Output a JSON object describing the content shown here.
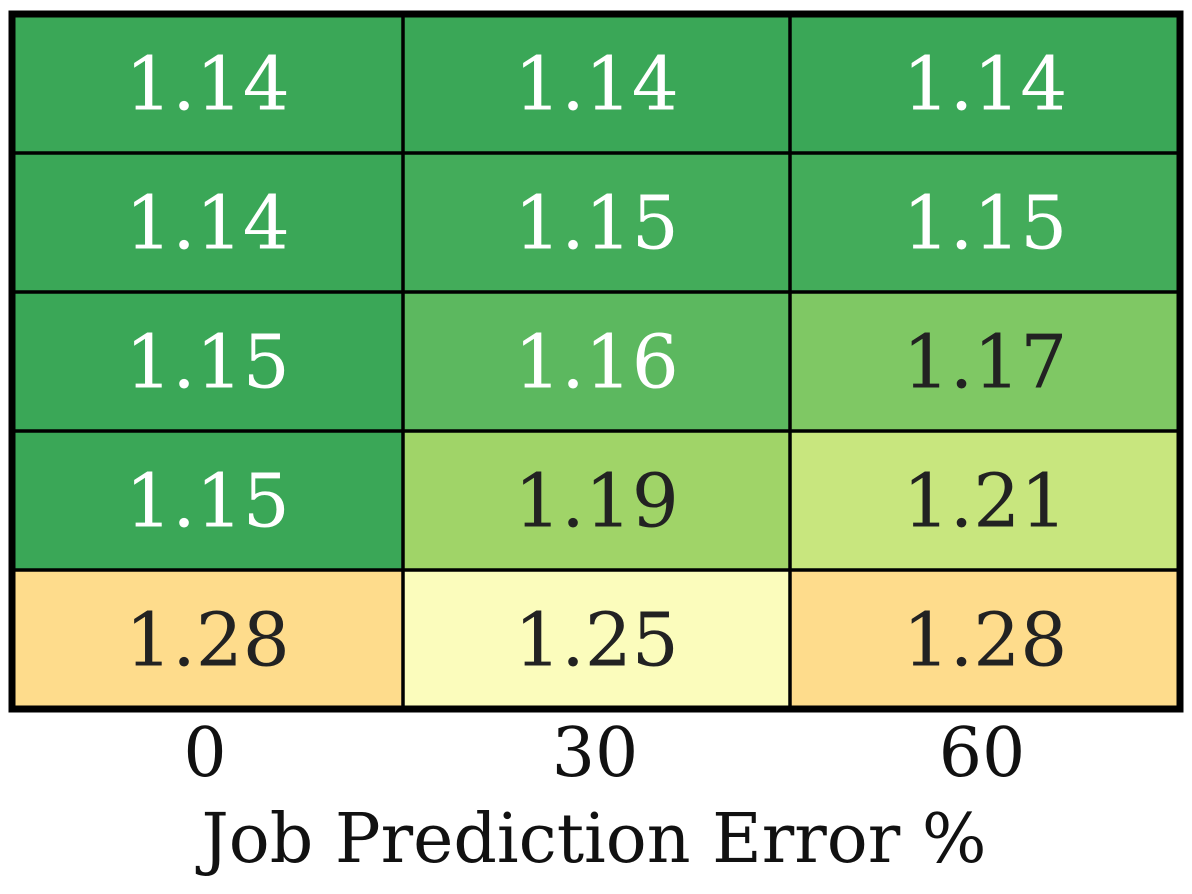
{
  "chart_data": {
    "type": "heatmap",
    "title": "",
    "xlabel": "Job Prediction Error %",
    "ylabel": "",
    "x_categories": [
      "0",
      "30",
      "60"
    ],
    "rows": [
      {
        "values": [
          1.14,
          1.14,
          1.14
        ],
        "labels": [
          "1.14",
          "1.14",
          "1.14"
        ]
      },
      {
        "values": [
          1.14,
          1.15,
          1.15
        ],
        "labels": [
          "1.14",
          "1.15",
          "1.15"
        ]
      },
      {
        "values": [
          1.15,
          1.16,
          1.17
        ],
        "labels": [
          "1.15",
          "1.16",
          "1.17"
        ]
      },
      {
        "values": [
          1.15,
          1.19,
          1.21
        ],
        "labels": [
          "1.15",
          "1.19",
          "1.21"
        ]
      },
      {
        "values": [
          1.28,
          1.25,
          1.28
        ],
        "labels": [
          "1.28",
          "1.25",
          "1.28"
        ]
      }
    ],
    "colors": [
      [
        "#3aa757",
        "#3aa757",
        "#3aa757"
      ],
      [
        "#3aa757",
        "#43ac5a",
        "#43ac5a"
      ],
      [
        "#3aa757",
        "#5cb85f",
        "#7fc864"
      ],
      [
        "#3aa757",
        "#a0d468",
        "#c8e67e"
      ],
      [
        "#fedc8c",
        "#fbfcbc",
        "#fedc8c"
      ]
    ],
    "text_colors": [
      [
        "#ffffff",
        "#ffffff",
        "#ffffff"
      ],
      [
        "#ffffff",
        "#ffffff",
        "#ffffff"
      ],
      [
        "#ffffff",
        "#ffffff",
        "#222222"
      ],
      [
        "#ffffff",
        "#222222",
        "#222222"
      ],
      [
        "#222222",
        "#222222",
        "#222222"
      ]
    ],
    "colormap": "RdYlGn (reversed)",
    "grid": true,
    "legend": "none"
  }
}
